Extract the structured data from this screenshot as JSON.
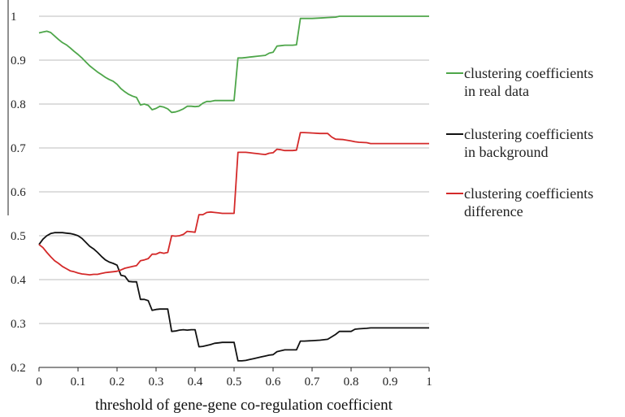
{
  "chart_data": {
    "type": "line",
    "title": "",
    "xlabel": "threshold of gene-gene co-regulation coefficient",
    "ylabel": "",
    "xlim": [
      0,
      1
    ],
    "ylim": [
      0.2,
      1
    ],
    "x_ticks": [
      "0",
      "0.1",
      "0.2",
      "0.3",
      "0.4",
      "0.5",
      "0.6",
      "0.7",
      "0.8",
      "0.9",
      "1"
    ],
    "y_ticks": [
      "0.2",
      "0.3",
      "0.4",
      "0.5",
      "0.6",
      "0.7",
      "0.8",
      "0.9",
      "1"
    ],
    "grid": "horizontal",
    "legend_position": "right",
    "series": [
      {
        "name": "clustering coefficients in real data",
        "legend_lines": [
          "clustering coefficients",
          "in real data"
        ],
        "color": "#4ea64a",
        "points": [
          [
            0,
            0.962
          ],
          [
            0.01,
            0.964
          ],
          [
            0.02,
            0.966
          ],
          [
            0.03,
            0.963
          ],
          [
            0.04,
            0.955
          ],
          [
            0.05,
            0.947
          ],
          [
            0.06,
            0.94
          ],
          [
            0.07,
            0.935
          ],
          [
            0.08,
            0.928
          ],
          [
            0.09,
            0.92
          ],
          [
            0.1,
            0.913
          ],
          [
            0.11,
            0.905
          ],
          [
            0.12,
            0.896
          ],
          [
            0.13,
            0.887
          ],
          [
            0.14,
            0.88
          ],
          [
            0.15,
            0.873
          ],
          [
            0.16,
            0.867
          ],
          [
            0.17,
            0.861
          ],
          [
            0.18,
            0.856
          ],
          [
            0.19,
            0.852
          ],
          [
            0.2,
            0.845
          ],
          [
            0.21,
            0.835
          ],
          [
            0.22,
            0.828
          ],
          [
            0.23,
            0.822
          ],
          [
            0.24,
            0.818
          ],
          [
            0.25,
            0.815
          ],
          [
            0.26,
            0.798
          ],
          [
            0.27,
            0.8
          ],
          [
            0.28,
            0.797
          ],
          [
            0.29,
            0.787
          ],
          [
            0.3,
            0.79
          ],
          [
            0.31,
            0.795
          ],
          [
            0.32,
            0.793
          ],
          [
            0.33,
            0.789
          ],
          [
            0.34,
            0.781
          ],
          [
            0.35,
            0.782
          ],
          [
            0.36,
            0.785
          ],
          [
            0.37,
            0.789
          ],
          [
            0.38,
            0.795
          ],
          [
            0.39,
            0.795
          ],
          [
            0.4,
            0.794
          ],
          [
            0.41,
            0.795
          ],
          [
            0.42,
            0.802
          ],
          [
            0.43,
            0.806
          ],
          [
            0.44,
            0.806
          ],
          [
            0.45,
            0.808
          ],
          [
            0.46,
            0.808
          ],
          [
            0.47,
            0.808
          ],
          [
            0.48,
            0.808
          ],
          [
            0.49,
            0.808
          ],
          [
            0.5,
            0.808
          ],
          [
            0.51,
            0.905
          ],
          [
            0.52,
            0.905
          ],
          [
            0.53,
            0.906
          ],
          [
            0.54,
            0.907
          ],
          [
            0.55,
            0.908
          ],
          [
            0.56,
            0.909
          ],
          [
            0.57,
            0.91
          ],
          [
            0.58,
            0.911
          ],
          [
            0.59,
            0.916
          ],
          [
            0.6,
            0.918
          ],
          [
            0.61,
            0.932
          ],
          [
            0.62,
            0.933
          ],
          [
            0.63,
            0.934
          ],
          [
            0.64,
            0.934
          ],
          [
            0.65,
            0.934
          ],
          [
            0.66,
            0.935
          ],
          [
            0.67,
            0.995
          ],
          [
            0.68,
            0.995
          ],
          [
            0.7,
            0.995
          ],
          [
            0.72,
            0.996
          ],
          [
            0.74,
            0.997
          ],
          [
            0.76,
            0.998
          ],
          [
            0.77,
            1.0
          ],
          [
            0.8,
            1.0
          ],
          [
            0.85,
            1.0
          ],
          [
            0.9,
            1.0
          ],
          [
            0.95,
            1.0
          ],
          [
            1.0,
            1.0
          ]
        ]
      },
      {
        "name": "clustering coefficients in background",
        "legend_lines": [
          "clustering coefficients",
          "in background"
        ],
        "color": "#111111",
        "points": [
          [
            0,
            0.48
          ],
          [
            0.01,
            0.492
          ],
          [
            0.02,
            0.5
          ],
          [
            0.03,
            0.505
          ],
          [
            0.04,
            0.507
          ],
          [
            0.05,
            0.507
          ],
          [
            0.06,
            0.507
          ],
          [
            0.07,
            0.506
          ],
          [
            0.08,
            0.505
          ],
          [
            0.09,
            0.503
          ],
          [
            0.1,
            0.5
          ],
          [
            0.11,
            0.494
          ],
          [
            0.12,
            0.485
          ],
          [
            0.13,
            0.476
          ],
          [
            0.14,
            0.47
          ],
          [
            0.15,
            0.462
          ],
          [
            0.16,
            0.453
          ],
          [
            0.17,
            0.445
          ],
          [
            0.18,
            0.44
          ],
          [
            0.19,
            0.437
          ],
          [
            0.2,
            0.433
          ],
          [
            0.21,
            0.41
          ],
          [
            0.22,
            0.408
          ],
          [
            0.23,
            0.396
          ],
          [
            0.24,
            0.395
          ],
          [
            0.25,
            0.395
          ],
          [
            0.26,
            0.355
          ],
          [
            0.27,
            0.355
          ],
          [
            0.28,
            0.352
          ],
          [
            0.29,
            0.33
          ],
          [
            0.3,
            0.332
          ],
          [
            0.31,
            0.333
          ],
          [
            0.32,
            0.333
          ],
          [
            0.33,
            0.333
          ],
          [
            0.34,
            0.282
          ],
          [
            0.35,
            0.283
          ],
          [
            0.36,
            0.285
          ],
          [
            0.37,
            0.286
          ],
          [
            0.38,
            0.285
          ],
          [
            0.39,
            0.286
          ],
          [
            0.4,
            0.286
          ],
          [
            0.41,
            0.247
          ],
          [
            0.42,
            0.248
          ],
          [
            0.43,
            0.25
          ],
          [
            0.44,
            0.252
          ],
          [
            0.45,
            0.255
          ],
          [
            0.46,
            0.256
          ],
          [
            0.47,
            0.257
          ],
          [
            0.48,
            0.257
          ],
          [
            0.49,
            0.257
          ],
          [
            0.5,
            0.257
          ],
          [
            0.51,
            0.215
          ],
          [
            0.52,
            0.215
          ],
          [
            0.53,
            0.216
          ],
          [
            0.54,
            0.218
          ],
          [
            0.55,
            0.22
          ],
          [
            0.56,
            0.222
          ],
          [
            0.57,
            0.224
          ],
          [
            0.58,
            0.226
          ],
          [
            0.59,
            0.228
          ],
          [
            0.6,
            0.229
          ],
          [
            0.61,
            0.236
          ],
          [
            0.62,
            0.238
          ],
          [
            0.63,
            0.24
          ],
          [
            0.64,
            0.24
          ],
          [
            0.65,
            0.24
          ],
          [
            0.66,
            0.24
          ],
          [
            0.67,
            0.26
          ],
          [
            0.68,
            0.26
          ],
          [
            0.7,
            0.261
          ],
          [
            0.72,
            0.262
          ],
          [
            0.74,
            0.264
          ],
          [
            0.76,
            0.275
          ],
          [
            0.77,
            0.282
          ],
          [
            0.78,
            0.282
          ],
          [
            0.8,
            0.282
          ],
          [
            0.81,
            0.287
          ],
          [
            0.82,
            0.288
          ],
          [
            0.84,
            0.289
          ],
          [
            0.85,
            0.29
          ],
          [
            0.9,
            0.29
          ],
          [
            0.95,
            0.29
          ],
          [
            1.0,
            0.29
          ]
        ]
      },
      {
        "name": "clustering coefficients difference",
        "legend_lines": [
          "clustering coefficients",
          "difference"
        ],
        "color": "#d42a2a",
        "points": [
          [
            0,
            0.48
          ],
          [
            0.01,
            0.473
          ],
          [
            0.02,
            0.462
          ],
          [
            0.03,
            0.452
          ],
          [
            0.04,
            0.443
          ],
          [
            0.05,
            0.437
          ],
          [
            0.06,
            0.43
          ],
          [
            0.07,
            0.425
          ],
          [
            0.08,
            0.42
          ],
          [
            0.09,
            0.418
          ],
          [
            0.1,
            0.415
          ],
          [
            0.11,
            0.413
          ],
          [
            0.12,
            0.412
          ],
          [
            0.13,
            0.411
          ],
          [
            0.14,
            0.412
          ],
          [
            0.15,
            0.412
          ],
          [
            0.16,
            0.414
          ],
          [
            0.17,
            0.416
          ],
          [
            0.18,
            0.417
          ],
          [
            0.19,
            0.418
          ],
          [
            0.2,
            0.419
          ],
          [
            0.21,
            0.422
          ],
          [
            0.22,
            0.426
          ],
          [
            0.23,
            0.428
          ],
          [
            0.24,
            0.43
          ],
          [
            0.25,
            0.432
          ],
          [
            0.26,
            0.443
          ],
          [
            0.27,
            0.445
          ],
          [
            0.28,
            0.448
          ],
          [
            0.29,
            0.458
          ],
          [
            0.3,
            0.458
          ],
          [
            0.31,
            0.462
          ],
          [
            0.32,
            0.46
          ],
          [
            0.33,
            0.462
          ],
          [
            0.34,
            0.5
          ],
          [
            0.35,
            0.499
          ],
          [
            0.36,
            0.5
          ],
          [
            0.37,
            0.503
          ],
          [
            0.38,
            0.51
          ],
          [
            0.39,
            0.509
          ],
          [
            0.4,
            0.508
          ],
          [
            0.41,
            0.548
          ],
          [
            0.42,
            0.548
          ],
          [
            0.43,
            0.553
          ],
          [
            0.44,
            0.554
          ],
          [
            0.45,
            0.553
          ],
          [
            0.46,
            0.552
          ],
          [
            0.47,
            0.551
          ],
          [
            0.48,
            0.551
          ],
          [
            0.49,
            0.551
          ],
          [
            0.5,
            0.551
          ],
          [
            0.51,
            0.69
          ],
          [
            0.52,
            0.69
          ],
          [
            0.53,
            0.69
          ],
          [
            0.54,
            0.689
          ],
          [
            0.55,
            0.688
          ],
          [
            0.56,
            0.687
          ],
          [
            0.57,
            0.686
          ],
          [
            0.58,
            0.685
          ],
          [
            0.59,
            0.688
          ],
          [
            0.6,
            0.689
          ],
          [
            0.61,
            0.697
          ],
          [
            0.62,
            0.696
          ],
          [
            0.63,
            0.694
          ],
          [
            0.64,
            0.694
          ],
          [
            0.65,
            0.694
          ],
          [
            0.66,
            0.695
          ],
          [
            0.67,
            0.735
          ],
          [
            0.68,
            0.735
          ],
          [
            0.7,
            0.734
          ],
          [
            0.72,
            0.733
          ],
          [
            0.74,
            0.733
          ],
          [
            0.75,
            0.725
          ],
          [
            0.76,
            0.72
          ],
          [
            0.78,
            0.719
          ],
          [
            0.8,
            0.716
          ],
          [
            0.81,
            0.714
          ],
          [
            0.82,
            0.713
          ],
          [
            0.84,
            0.712
          ],
          [
            0.85,
            0.71
          ],
          [
            0.9,
            0.71
          ],
          [
            0.95,
            0.71
          ],
          [
            1.0,
            0.71
          ]
        ]
      }
    ]
  }
}
